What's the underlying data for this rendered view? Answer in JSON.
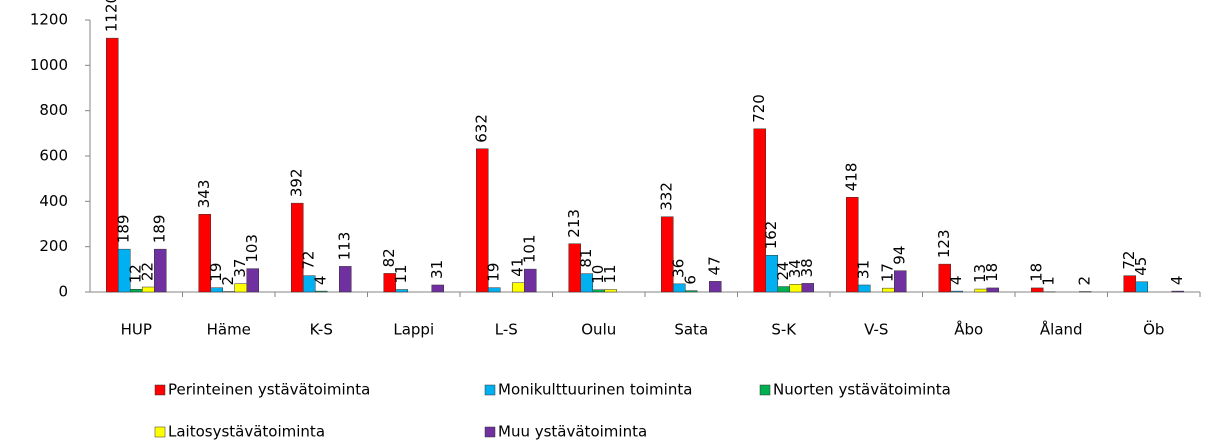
{
  "chart_data": {
    "type": "bar",
    "categories": [
      "HUP",
      "Häme",
      "K-S",
      "Lappi",
      "L-S",
      "Oulu",
      "Sata",
      "S-K",
      "V-S",
      "Åbo",
      "Åland",
      "Öb"
    ],
    "series": [
      {
        "name": "Perinteinen ystävätoiminta",
        "color": "#ff0000",
        "values": [
          1120,
          343,
          392,
          82,
          632,
          213,
          332,
          720,
          418,
          123,
          18,
          72
        ]
      },
      {
        "name": "Monikulttuurinen toiminta",
        "color": "#00b0f0",
        "values": [
          189,
          19,
          72,
          11,
          19,
          81,
          36,
          162,
          31,
          4,
          1,
          45
        ]
      },
      {
        "name": "Nuorten ystävätoiminta",
        "color": "#00b050",
        "values": [
          12,
          2,
          4,
          null,
          null,
          10,
          6,
          24,
          null,
          null,
          null,
          null
        ]
      },
      {
        "name": "Laitosystävätoiminta",
        "color": "#ffff00",
        "values": [
          22,
          37,
          null,
          null,
          41,
          11,
          null,
          34,
          17,
          13,
          null,
          null
        ]
      },
      {
        "name": "Muu ystävätoiminta",
        "color": "#7030a0",
        "values": [
          189,
          103,
          113,
          31,
          101,
          null,
          47,
          38,
          94,
          18,
          2,
          4
        ]
      }
    ],
    "ylim": [
      0,
      1200
    ],
    "yticks": [
      0,
      200,
      400,
      600,
      800,
      1000,
      1200
    ],
    "grid": false,
    "legend": "bottom"
  }
}
